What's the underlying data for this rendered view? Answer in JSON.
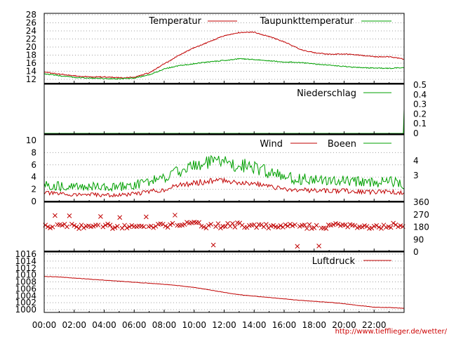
{
  "colors": {
    "red": "#c00000",
    "green": "#00a000",
    "grid": "#a0a0a0",
    "frame": "#000000"
  },
  "credit": "http://www.tiefflieger.de/wetter/",
  "x_ticks": [
    "00:00",
    "02:00",
    "04:00",
    "06:00",
    "08:00",
    "10:00",
    "12:00",
    "14:00",
    "16:00",
    "18:00",
    "20:00",
    "22:00"
  ],
  "chart_data": [
    {
      "type": "line",
      "id": "temperature",
      "x_hours": [
        0,
        1,
        2,
        3,
        4,
        5,
        6,
        7,
        8,
        9,
        10,
        11,
        12,
        13,
        14,
        15,
        16,
        17,
        18,
        19,
        20,
        21,
        22,
        23,
        24
      ],
      "series": [
        {
          "name": "Temperatur",
          "color": "#c00000",
          "values": [
            13.8,
            13.3,
            12.9,
            12.6,
            12.6,
            12.4,
            12.5,
            13.6,
            15.8,
            18.0,
            19.8,
            21.3,
            22.8,
            23.6,
            23.7,
            22.6,
            21.3,
            19.5,
            18.6,
            18.2,
            18.3,
            18.0,
            17.6,
            17.6,
            17.0
          ]
        },
        {
          "name": "Taupunkttemperatur",
          "color": "#00a000",
          "values": [
            13.4,
            12.9,
            12.5,
            12.3,
            12.2,
            12.1,
            12.3,
            13.1,
            14.6,
            15.4,
            15.9,
            16.3,
            16.7,
            17.1,
            16.9,
            16.6,
            16.3,
            16.2,
            15.8,
            15.5,
            15.2,
            14.9,
            14.8,
            14.7,
            14.9
          ]
        }
      ],
      "y_ticks": [
        12,
        14,
        16,
        18,
        20,
        22,
        24,
        26,
        28
      ],
      "ylim": [
        11,
        29
      ]
    },
    {
      "type": "line",
      "id": "precipitation",
      "series": [
        {
          "name": "Niederschlag",
          "color": "#00a000",
          "x_hours": [
            0,
            23.95,
            24
          ],
          "values": [
            0,
            0,
            0.25
          ]
        }
      ],
      "y_ticks": [
        "0",
        "0.1",
        "0.2",
        "0.3",
        "0.4",
        "0.5"
      ],
      "ylim": [
        0,
        0.5
      ]
    },
    {
      "type": "line",
      "id": "wind",
      "x_hours": [
        0,
        1,
        2,
        3,
        4,
        5,
        6,
        7,
        8,
        9,
        10,
        11,
        12,
        13,
        14,
        15,
        16,
        17,
        18,
        19,
        20,
        21,
        22,
        23,
        24
      ],
      "series": [
        {
          "name": "Wind",
          "color": "#c00000",
          "values": [
            1.4,
            1.2,
            1.1,
            1.1,
            1.0,
            1.0,
            1.2,
            1.6,
            1.9,
            2.6,
            3.0,
            3.3,
            3.4,
            3.1,
            2.9,
            2.4,
            2.0,
            1.8,
            1.8,
            1.7,
            1.7,
            1.6,
            1.5,
            1.6,
            1.3
          ]
        },
        {
          "name": "Boeen",
          "color": "#00a000",
          "values": [
            2.8,
            2.4,
            2.3,
            2.4,
            2.2,
            2.3,
            2.6,
            3.2,
            3.8,
            4.9,
            5.7,
            6.2,
            6.3,
            5.9,
            5.5,
            4.6,
            3.9,
            3.6,
            3.5,
            3.4,
            3.3,
            3.2,
            3.0,
            3.3,
            2.6
          ]
        }
      ],
      "y_ticks": [
        0,
        2,
        4,
        6,
        8,
        10
      ],
      "ylim": [
        0,
        10
      ],
      "y2_ticks": [
        "3",
        "4"
      ]
    },
    {
      "type": "scatter",
      "id": "wind-direction",
      "marker": "x",
      "x_hours": [
        0,
        1,
        2,
        3,
        4,
        5,
        6,
        7,
        8,
        9,
        10,
        11,
        12,
        13,
        14,
        15,
        16,
        17,
        18,
        19,
        20,
        21,
        22,
        23,
        24
      ],
      "values": [
        180,
        200,
        190,
        180,
        190,
        180,
        200,
        180,
        190,
        200,
        200,
        190,
        190,
        200,
        190,
        190,
        190,
        180,
        180,
        190,
        190,
        180,
        180,
        190,
        200
      ],
      "y_ticks": [
        "0",
        "90",
        "180",
        "270",
        "360"
      ],
      "ylim": [
        0,
        360
      ]
    },
    {
      "type": "line",
      "id": "pressure",
      "x_hours": [
        0,
        1,
        2,
        3,
        4,
        5,
        6,
        7,
        8,
        9,
        10,
        11,
        12,
        13,
        14,
        15,
        16,
        17,
        18,
        19,
        20,
        21,
        22,
        23,
        24
      ],
      "series": [
        {
          "name": "Luftdruck",
          "color": "#c00000",
          "values": [
            1009.6,
            1009.4,
            1009.1,
            1008.8,
            1008.5,
            1008.2,
            1007.9,
            1007.6,
            1007.3,
            1006.9,
            1006.4,
            1005.7,
            1005.0,
            1004.3,
            1003.9,
            1003.5,
            1003.1,
            1002.7,
            1002.4,
            1002.1,
            1001.7,
            1001.2,
            1000.7,
            1000.6,
            1000.4
          ]
        }
      ],
      "y_ticks": [
        1000,
        1002,
        1004,
        1006,
        1008,
        1010,
        1012,
        1014,
        1016
      ],
      "ylim": [
        999.5,
        1016
      ]
    }
  ]
}
